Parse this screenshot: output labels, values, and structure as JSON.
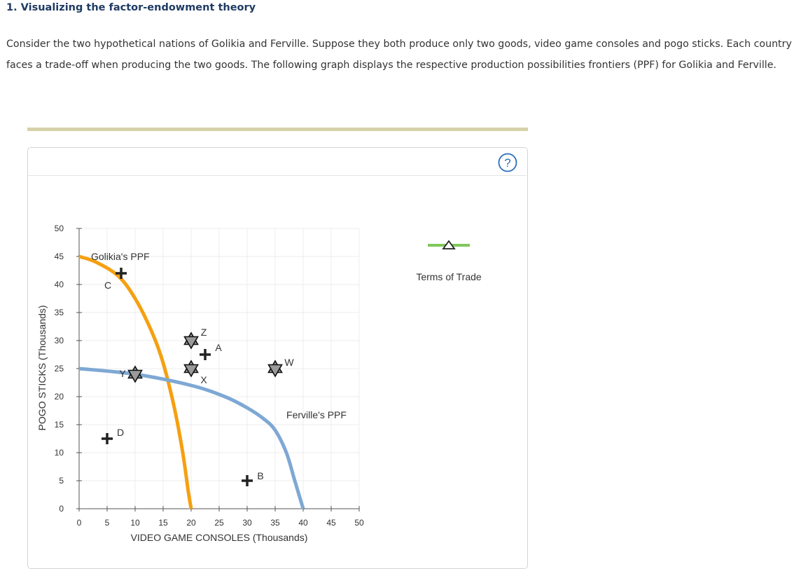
{
  "question": {
    "title": "1. Visualizing the factor-endowment theory",
    "intro": "Consider the two hypothetical nations of Golikia and Ferville. Suppose they both produce only two goods, video game consoles and pogo sticks. Each country faces a trade-off when producing the two goods. The following graph displays the respective production possibilities frontiers (PPF) for Golikia and Ferville."
  },
  "help": {
    "icon": "question-mark-icon",
    "glyph": "?"
  },
  "legend": {
    "label": "Terms of Trade",
    "line_color": "#7fc75a"
  },
  "colors": {
    "golikia": "#f5a011",
    "ferville": "#7ea8d4",
    "marker": "#9a9a9a",
    "grid": "#ececec"
  },
  "chart_data": {
    "type": "line",
    "xlabel": "VIDEO GAME CONSOLES (Thousands)",
    "ylabel": "POGO STICKS (Thousands)",
    "xlim": [
      0,
      50
    ],
    "ylim": [
      0,
      50
    ],
    "xticks": [
      0,
      5,
      10,
      15,
      20,
      25,
      30,
      35,
      40,
      45,
      50
    ],
    "yticks": [
      0,
      5,
      10,
      15,
      20,
      25,
      30,
      35,
      40,
      45,
      50
    ],
    "grid": true,
    "series": [
      {
        "name": "Golikia's PPF",
        "x": [
          0,
          3,
          7,
          10,
          13,
          15,
          17,
          18.5,
          19.5,
          20
        ],
        "y": [
          45,
          44,
          41.5,
          37.5,
          31.5,
          26,
          18,
          10,
          3,
          0
        ]
      },
      {
        "name": "Ferville's PPF",
        "x": [
          0,
          10,
          20,
          26,
          30,
          33,
          35,
          37,
          38.5,
          40
        ],
        "y": [
          25,
          24,
          22,
          20,
          18,
          16,
          14,
          10,
          5,
          0
        ]
      }
    ],
    "points": [
      {
        "label": "C",
        "x": 7.5,
        "y": 42,
        "marker": "plus"
      },
      {
        "label": "A",
        "x": 22.5,
        "y": 27.5,
        "marker": "plus"
      },
      {
        "label": "D",
        "x": 5,
        "y": 12.5,
        "marker": "plus"
      },
      {
        "label": "B",
        "x": 30,
        "y": 5,
        "marker": "plus"
      },
      {
        "label": "Z",
        "x": 20,
        "y": 30,
        "marker": "star"
      },
      {
        "label": "X",
        "x": 20,
        "y": 25,
        "marker": "star"
      },
      {
        "label": "Y",
        "x": 10,
        "y": 24,
        "marker": "star"
      },
      {
        "label": "W",
        "x": 35,
        "y": 25,
        "marker": "star"
      }
    ]
  }
}
